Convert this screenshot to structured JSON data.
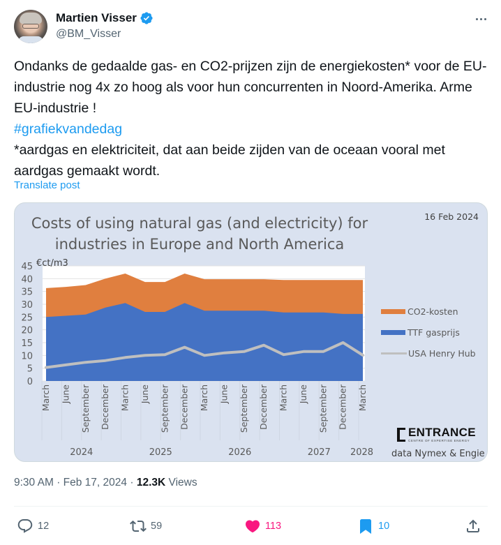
{
  "author": {
    "display_name": "Martien Visser",
    "handle": "@BM_Visser",
    "verified": true
  },
  "tweet": {
    "text_line1": "Ondanks de gedaalde gas- en CO2-prijzen zijn de energiekosten* voor de EU-industrie nog 4x zo hoog als voor hun concurrenten in Noord-Amerika. Arme EU-industrie !",
    "hashtag": "#grafiekvandedag",
    "text_line2": "*aardgas en elektriciteit, dat aan beide zijden van de oceaan vooral met aardgas gemaakt wordt.",
    "translate_label": "Translate post"
  },
  "media": {
    "title_line1": "Costs of using natural gas (and electricity) for",
    "title_line2": "industries in Europe and North America",
    "date": "16 Feb 2024",
    "brand": "ENTRANCE",
    "brand_sub": "CENTRE OF EXPERTISE ENERGY",
    "data_credit": "data Nymex & Engie"
  },
  "chart_data": {
    "type": "area",
    "title": "Costs of using natural gas (and electricity) for industries in Europe and North America",
    "subtitle": "16 Feb 2024",
    "ylabel": "€ct/m3",
    "xlabel": "",
    "ylim": [
      0,
      45
    ],
    "yticks": [
      0,
      5,
      10,
      15,
      20,
      25,
      30,
      35,
      40,
      45
    ],
    "grid": true,
    "legend_position": "right",
    "stacked": true,
    "categories": [
      "March",
      "June",
      "September",
      "December",
      "March",
      "June",
      "September",
      "December",
      "March",
      "June",
      "September",
      "December",
      "March",
      "June",
      "September",
      "December",
      "March"
    ],
    "year_groups": [
      {
        "label": "2024",
        "span": 4
      },
      {
        "label": "2025",
        "span": 4
      },
      {
        "label": "2026",
        "span": 4
      },
      {
        "label": "2027",
        "span": 4
      },
      {
        "label": "2028",
        "span": 1
      }
    ],
    "x": [
      "Mar 2024",
      "Jun 2024",
      "Sep 2024",
      "Dec 2024",
      "Mar 2025",
      "Jun 2025",
      "Sep 2025",
      "Dec 2025",
      "Mar 2026",
      "Jun 2026",
      "Sep 2026",
      "Dec 2026",
      "Mar 2027",
      "Jun 2027",
      "Sep 2027",
      "Dec 2027",
      "Mar 2028"
    ],
    "series": [
      {
        "name": "TTF gasprijs",
        "kind": "area",
        "color": "#4472c4",
        "values": [
          25.0,
          25.5,
          26.0,
          28.7,
          30.5,
          27.0,
          27.0,
          30.5,
          27.5,
          27.5,
          27.5,
          27.5,
          26.8,
          26.8,
          26.8,
          26.2,
          26.2
        ]
      },
      {
        "name": "CO2-kosten",
        "kind": "area",
        "color": "#e07f3f",
        "values": [
          11.3,
          11.3,
          11.5,
          11.3,
          11.5,
          11.7,
          11.7,
          11.5,
          12.3,
          12.3,
          12.3,
          12.3,
          12.7,
          12.7,
          12.7,
          13.3,
          13.3
        ]
      },
      {
        "name": "USA Henry Hub",
        "kind": "line",
        "color": "#bfbfbf",
        "values": [
          5.3,
          6.3,
          7.3,
          8.0,
          9.2,
          10.0,
          10.3,
          13.2,
          10.0,
          11.0,
          11.5,
          14.0,
          10.3,
          11.5,
          11.5,
          15.0,
          10.1
        ]
      }
    ]
  },
  "meta": {
    "time": "9:30 AM",
    "date": "Feb 17, 2024",
    "separator": "·",
    "views_count": "12.3K",
    "views_label": "Views"
  },
  "actions": {
    "reply_count": "12",
    "retweet_count": "59",
    "like_count": "113",
    "bookmark_count": "10"
  },
  "colors": {
    "accent": "#1d9bf0",
    "like": "#f91880",
    "muted": "#536471",
    "chart_bg": "#dae2f0"
  }
}
